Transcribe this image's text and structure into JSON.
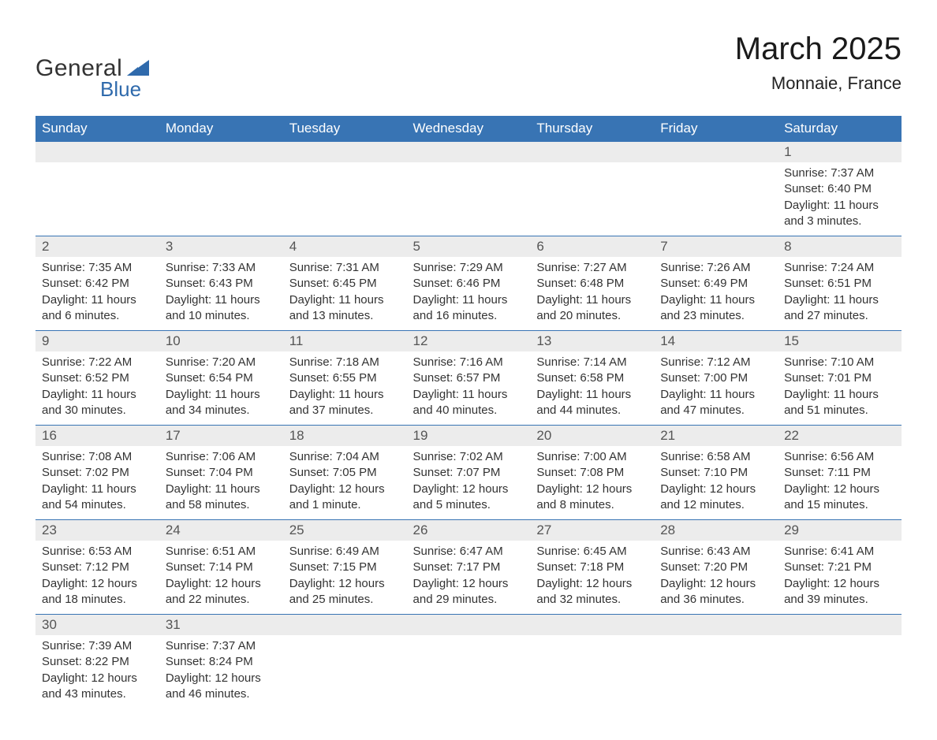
{
  "brand": {
    "part1": "General",
    "part2": "Blue"
  },
  "title": "March 2025",
  "location": "Monnaie, France",
  "colors": {
    "header_bg": "#3874b4",
    "header_text": "#ffffff",
    "daynum_bg": "#ececec",
    "row_border": "#3874b4",
    "body_text": "#333333",
    "logo_accent": "#2f6aac",
    "background": "#ffffff"
  },
  "typography": {
    "title_fontsize": 40,
    "location_fontsize": 22,
    "header_fontsize": 17,
    "daynum_fontsize": 17,
    "cell_fontsize": 15,
    "font_family": "Arial"
  },
  "day_headers": [
    "Sunday",
    "Monday",
    "Tuesday",
    "Wednesday",
    "Thursday",
    "Friday",
    "Saturday"
  ],
  "weeks": [
    [
      {
        "n": "",
        "sunrise": "",
        "sunset": "",
        "daylight": ""
      },
      {
        "n": "",
        "sunrise": "",
        "sunset": "",
        "daylight": ""
      },
      {
        "n": "",
        "sunrise": "",
        "sunset": "",
        "daylight": ""
      },
      {
        "n": "",
        "sunrise": "",
        "sunset": "",
        "daylight": ""
      },
      {
        "n": "",
        "sunrise": "",
        "sunset": "",
        "daylight": ""
      },
      {
        "n": "",
        "sunrise": "",
        "sunset": "",
        "daylight": ""
      },
      {
        "n": "1",
        "sunrise": "Sunrise: 7:37 AM",
        "sunset": "Sunset: 6:40 PM",
        "daylight": "Daylight: 11 hours and 3 minutes."
      }
    ],
    [
      {
        "n": "2",
        "sunrise": "Sunrise: 7:35 AM",
        "sunset": "Sunset: 6:42 PM",
        "daylight": "Daylight: 11 hours and 6 minutes."
      },
      {
        "n": "3",
        "sunrise": "Sunrise: 7:33 AM",
        "sunset": "Sunset: 6:43 PM",
        "daylight": "Daylight: 11 hours and 10 minutes."
      },
      {
        "n": "4",
        "sunrise": "Sunrise: 7:31 AM",
        "sunset": "Sunset: 6:45 PM",
        "daylight": "Daylight: 11 hours and 13 minutes."
      },
      {
        "n": "5",
        "sunrise": "Sunrise: 7:29 AM",
        "sunset": "Sunset: 6:46 PM",
        "daylight": "Daylight: 11 hours and 16 minutes."
      },
      {
        "n": "6",
        "sunrise": "Sunrise: 7:27 AM",
        "sunset": "Sunset: 6:48 PM",
        "daylight": "Daylight: 11 hours and 20 minutes."
      },
      {
        "n": "7",
        "sunrise": "Sunrise: 7:26 AM",
        "sunset": "Sunset: 6:49 PM",
        "daylight": "Daylight: 11 hours and 23 minutes."
      },
      {
        "n": "8",
        "sunrise": "Sunrise: 7:24 AM",
        "sunset": "Sunset: 6:51 PM",
        "daylight": "Daylight: 11 hours and 27 minutes."
      }
    ],
    [
      {
        "n": "9",
        "sunrise": "Sunrise: 7:22 AM",
        "sunset": "Sunset: 6:52 PM",
        "daylight": "Daylight: 11 hours and 30 minutes."
      },
      {
        "n": "10",
        "sunrise": "Sunrise: 7:20 AM",
        "sunset": "Sunset: 6:54 PM",
        "daylight": "Daylight: 11 hours and 34 minutes."
      },
      {
        "n": "11",
        "sunrise": "Sunrise: 7:18 AM",
        "sunset": "Sunset: 6:55 PM",
        "daylight": "Daylight: 11 hours and 37 minutes."
      },
      {
        "n": "12",
        "sunrise": "Sunrise: 7:16 AM",
        "sunset": "Sunset: 6:57 PM",
        "daylight": "Daylight: 11 hours and 40 minutes."
      },
      {
        "n": "13",
        "sunrise": "Sunrise: 7:14 AM",
        "sunset": "Sunset: 6:58 PM",
        "daylight": "Daylight: 11 hours and 44 minutes."
      },
      {
        "n": "14",
        "sunrise": "Sunrise: 7:12 AM",
        "sunset": "Sunset: 7:00 PM",
        "daylight": "Daylight: 11 hours and 47 minutes."
      },
      {
        "n": "15",
        "sunrise": "Sunrise: 7:10 AM",
        "sunset": "Sunset: 7:01 PM",
        "daylight": "Daylight: 11 hours and 51 minutes."
      }
    ],
    [
      {
        "n": "16",
        "sunrise": "Sunrise: 7:08 AM",
        "sunset": "Sunset: 7:02 PM",
        "daylight": "Daylight: 11 hours and 54 minutes."
      },
      {
        "n": "17",
        "sunrise": "Sunrise: 7:06 AM",
        "sunset": "Sunset: 7:04 PM",
        "daylight": "Daylight: 11 hours and 58 minutes."
      },
      {
        "n": "18",
        "sunrise": "Sunrise: 7:04 AM",
        "sunset": "Sunset: 7:05 PM",
        "daylight": "Daylight: 12 hours and 1 minute."
      },
      {
        "n": "19",
        "sunrise": "Sunrise: 7:02 AM",
        "sunset": "Sunset: 7:07 PM",
        "daylight": "Daylight: 12 hours and 5 minutes."
      },
      {
        "n": "20",
        "sunrise": "Sunrise: 7:00 AM",
        "sunset": "Sunset: 7:08 PM",
        "daylight": "Daylight: 12 hours and 8 minutes."
      },
      {
        "n": "21",
        "sunrise": "Sunrise: 6:58 AM",
        "sunset": "Sunset: 7:10 PM",
        "daylight": "Daylight: 12 hours and 12 minutes."
      },
      {
        "n": "22",
        "sunrise": "Sunrise: 6:56 AM",
        "sunset": "Sunset: 7:11 PM",
        "daylight": "Daylight: 12 hours and 15 minutes."
      }
    ],
    [
      {
        "n": "23",
        "sunrise": "Sunrise: 6:53 AM",
        "sunset": "Sunset: 7:12 PM",
        "daylight": "Daylight: 12 hours and 18 minutes."
      },
      {
        "n": "24",
        "sunrise": "Sunrise: 6:51 AM",
        "sunset": "Sunset: 7:14 PM",
        "daylight": "Daylight: 12 hours and 22 minutes."
      },
      {
        "n": "25",
        "sunrise": "Sunrise: 6:49 AM",
        "sunset": "Sunset: 7:15 PM",
        "daylight": "Daylight: 12 hours and 25 minutes."
      },
      {
        "n": "26",
        "sunrise": "Sunrise: 6:47 AM",
        "sunset": "Sunset: 7:17 PM",
        "daylight": "Daylight: 12 hours and 29 minutes."
      },
      {
        "n": "27",
        "sunrise": "Sunrise: 6:45 AM",
        "sunset": "Sunset: 7:18 PM",
        "daylight": "Daylight: 12 hours and 32 minutes."
      },
      {
        "n": "28",
        "sunrise": "Sunrise: 6:43 AM",
        "sunset": "Sunset: 7:20 PM",
        "daylight": "Daylight: 12 hours and 36 minutes."
      },
      {
        "n": "29",
        "sunrise": "Sunrise: 6:41 AM",
        "sunset": "Sunset: 7:21 PM",
        "daylight": "Daylight: 12 hours and 39 minutes."
      }
    ],
    [
      {
        "n": "30",
        "sunrise": "Sunrise: 7:39 AM",
        "sunset": "Sunset: 8:22 PM",
        "daylight": "Daylight: 12 hours and 43 minutes."
      },
      {
        "n": "31",
        "sunrise": "Sunrise: 7:37 AM",
        "sunset": "Sunset: 8:24 PM",
        "daylight": "Daylight: 12 hours and 46 minutes."
      },
      {
        "n": "",
        "sunrise": "",
        "sunset": "",
        "daylight": ""
      },
      {
        "n": "",
        "sunrise": "",
        "sunset": "",
        "daylight": ""
      },
      {
        "n": "",
        "sunrise": "",
        "sunset": "",
        "daylight": ""
      },
      {
        "n": "",
        "sunrise": "",
        "sunset": "",
        "daylight": ""
      },
      {
        "n": "",
        "sunrise": "",
        "sunset": "",
        "daylight": ""
      }
    ]
  ]
}
